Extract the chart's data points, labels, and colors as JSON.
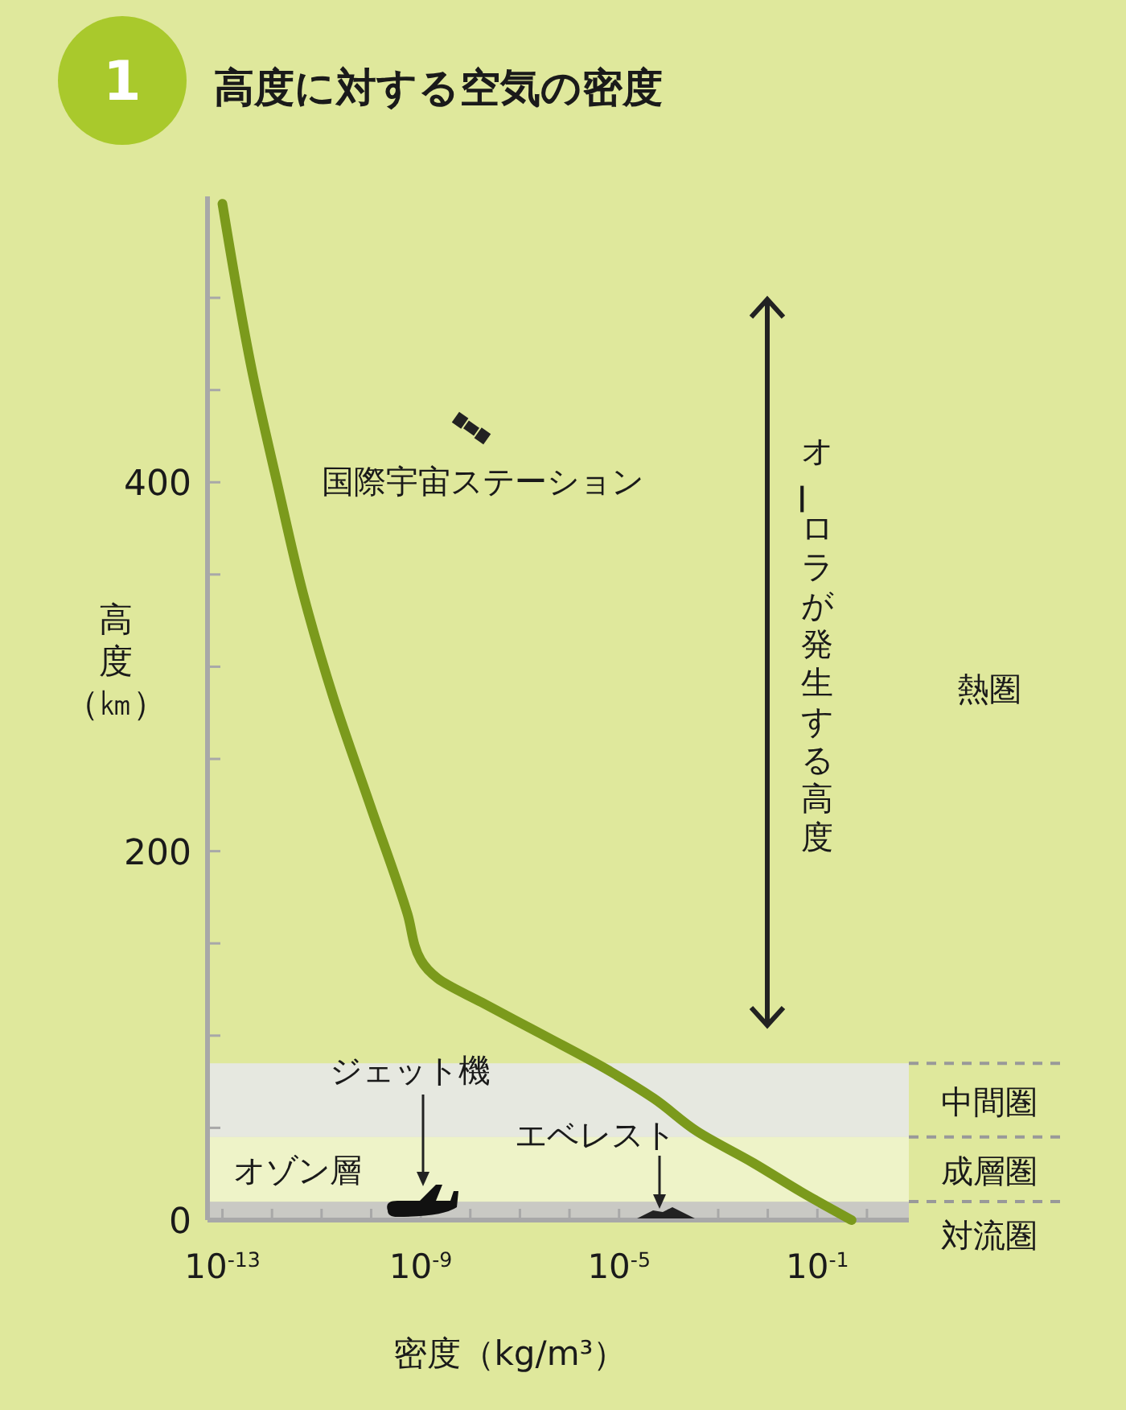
{
  "chart_data": {
    "type": "line",
    "title": "高度に対する空気の密度",
    "xlabel": "密度（kg/m³）",
    "ylabel": "高度（㎞）",
    "log": "x",
    "xlim": [
      5e-14,
      7
    ],
    "ylim": [
      0,
      555
    ],
    "xticks": [
      {
        "value": 1e-13,
        "label": "10$^{-13}$"
      },
      {
        "value": 1e-12,
        "label": null
      },
      {
        "value": 1e-11,
        "label": null
      },
      {
        "value": 1e-10,
        "label": null
      },
      {
        "value": 1e-09,
        "label": "10$^{-9}$"
      },
      {
        "value": 1e-08,
        "label": null
      },
      {
        "value": 1e-07,
        "label": null
      },
      {
        "value": 1e-06,
        "label": null
      },
      {
        "value": 1e-05,
        "label": "10$^{-5}$"
      },
      {
        "value": 0.0001,
        "label": null
      },
      {
        "value": 0.001,
        "label": null
      },
      {
        "value": 0.01,
        "label": null
      },
      {
        "value": 0.1,
        "label": "10$^{-1}$"
      },
      {
        "value": 1,
        "label": null
      }
    ],
    "yticks": [
      0,
      {
        "value": 50,
        "label": null
      },
      {
        "value": 100,
        "label": null
      },
      {
        "value": 150,
        "label": null
      },
      200,
      {
        "value": 250,
        "label": null
      },
      {
        "value": 300,
        "label": null
      },
      {
        "value": 350,
        "label": null
      },
      400,
      {
        "value": 450,
        "label": null
      },
      {
        "value": 500,
        "label": null
      }
    ],
    "series": [
      {
        "color": "#7b9a1c",
        "x": [
          1e-13,
          4.2e-13,
          1.26e-12,
          4.2e-12,
          1.74e-11,
          9.8e-11,
          5.4e-10,
          1e-09,
          2.2e-09,
          1.7e-08,
          3.1e-07,
          5.4e-06,
          5e-05,
          0.00038,
          0.0051,
          0.049,
          0.49
        ],
        "values": [
          551,
          457,
          400,
          340,
          283,
          224,
          166,
          141,
          131,
          118,
          100,
          82,
          66,
          48,
          31,
          15,
          0
        ]
      }
    ],
    "bands": [
      {
        "axis": "y",
        "from": 0,
        "to": 10,
        "label": "対流圏",
        "color": "#c9c9c4"
      },
      {
        "axis": "y",
        "from": 10,
        "to": 45,
        "label": "成層圏",
        "color": "#eef3c8"
      },
      {
        "axis": "y",
        "from": 45,
        "to": 85,
        "label": "中間圏",
        "color": "#e6e8e0"
      }
    ],
    "annotations": [
      "1",
      "熱圏",
      "オーロラが発生する高度",
      "国際宇宙ステーション",
      "ジェット機",
      "エベレスト",
      "オゾン層"
    ]
  }
}
